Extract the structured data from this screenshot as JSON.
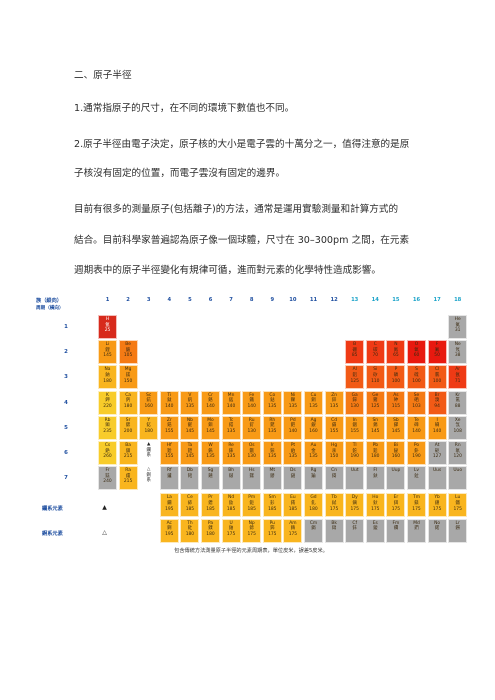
{
  "paragraphs": [
    "二、原子半徑",
    "1.通常指原子的尺寸，在不同的環境下數值也不同。",
    "2.原子半徑由電子決定，原子核的大小是電子雲的十萬分之一，值得注意的是原",
    "子核沒有固定的位置，而電子雲沒有固定的邊界。",
    "目前有很多的測量原子(包括離子)的方法，通常是運用實驗測量和計算方式的",
    "結合。目前科學家普遍認為原子像一個球體，尺寸在 30–300pm 之間，在元素",
    "週期表中的原子半徑變化有規律可循，進而對元素的化學特性造成影響。"
  ],
  "table": {
    "group_header": "族（縱向）",
    "period_header": "周期（橫向）",
    "groups": [
      "1",
      "2",
      "3",
      "4",
      "5",
      "6",
      "7",
      "8",
      "9",
      "10",
      "11",
      "12",
      "13",
      "14",
      "15",
      "16",
      "17",
      "18"
    ],
    "periods": [
      "1",
      "2",
      "3",
      "4",
      "5",
      "6",
      "7"
    ],
    "lanthanide_label": "鑭系元素",
    "actinide_label": "錒系元素",
    "lanthanide_marker": "▲",
    "actinide_marker": "△",
    "caption": "包含傳統方法測量原子半徑的元素周期表，單位皮米，誤差5皮米。",
    "colors": {
      "r0": "#e8190f",
      "r1": "#ef3a15",
      "r2": "#f25a16",
      "r3": "#f57a14",
      "r4": "#f89a16",
      "r5": "#f9b51e",
      "r6": "#f8cc2a",
      "gray": "#a8a8a8",
      "hd": "#d72a1c"
    },
    "cells": [
      {
        "sym": "H",
        "name": "氫",
        "val": "25",
        "r": 0,
        "c": 0,
        "col": "hd",
        "txt": "light"
      },
      {
        "sym": "He",
        "name": "氦",
        "val": "31",
        "r": 0,
        "c": 17,
        "col": "gray"
      },
      {
        "sym": "Li",
        "name": "鋰",
        "val": "145",
        "r": 1,
        "c": 0,
        "col": "r4"
      },
      {
        "sym": "Be",
        "name": "鈹",
        "val": "105",
        "r": 1,
        "c": 1,
        "col": "r3"
      },
      {
        "sym": "B",
        "name": "硼",
        "val": "85",
        "r": 1,
        "c": 12,
        "col": "r1"
      },
      {
        "sym": "C",
        "name": "碳",
        "val": "70",
        "r": 1,
        "c": 13,
        "col": "r1"
      },
      {
        "sym": "N",
        "name": "氮",
        "val": "65",
        "r": 1,
        "c": 14,
        "col": "r1"
      },
      {
        "sym": "O",
        "name": "氧",
        "val": "60",
        "r": 1,
        "c": 15,
        "col": "r0"
      },
      {
        "sym": "F",
        "name": "氟",
        "val": "50",
        "r": 1,
        "c": 16,
        "col": "r0"
      },
      {
        "sym": "Ne",
        "name": "氖",
        "val": "38",
        "r": 1,
        "c": 17,
        "col": "gray"
      },
      {
        "sym": "Na",
        "name": "鈉",
        "val": "180",
        "r": 2,
        "c": 0,
        "col": "r5"
      },
      {
        "sym": "Mg",
        "name": "鎂",
        "val": "150",
        "r": 2,
        "c": 1,
        "col": "r4"
      },
      {
        "sym": "Al",
        "name": "鋁",
        "val": "125",
        "r": 2,
        "c": 12,
        "col": "r2"
      },
      {
        "sym": "Si",
        "name": "矽",
        "val": "110",
        "r": 2,
        "c": 13,
        "col": "r2"
      },
      {
        "sym": "P",
        "name": "磷",
        "val": "100",
        "r": 2,
        "c": 14,
        "col": "r2"
      },
      {
        "sym": "S",
        "name": "硫",
        "val": "100",
        "r": 2,
        "c": 15,
        "col": "r2"
      },
      {
        "sym": "Cl",
        "name": "氯",
        "val": "100",
        "r": 2,
        "c": 16,
        "col": "r2"
      },
      {
        "sym": "Ar",
        "name": "氬",
        "val": "71",
        "r": 2,
        "c": 17,
        "col": "r1"
      },
      {
        "sym": "K",
        "name": "鉀",
        "val": "220",
        "r": 3,
        "c": 0,
        "col": "r6"
      },
      {
        "sym": "Ca",
        "name": "鈣",
        "val": "180",
        "r": 3,
        "c": 1,
        "col": "r5"
      },
      {
        "sym": "Sc",
        "name": "鈧",
        "val": "160",
        "r": 3,
        "c": 2,
        "col": "r4"
      },
      {
        "sym": "Ti",
        "name": "鈦",
        "val": "140",
        "r": 3,
        "c": 3,
        "col": "r4"
      },
      {
        "sym": "V",
        "name": "釩",
        "val": "135",
        "r": 3,
        "c": 4,
        "col": "r4"
      },
      {
        "sym": "Cr",
        "name": "鉻",
        "val": "140",
        "r": 3,
        "c": 5,
        "col": "r4"
      },
      {
        "sym": "Mn",
        "name": "錳",
        "val": "140",
        "r": 3,
        "c": 6,
        "col": "r4"
      },
      {
        "sym": "Fe",
        "name": "鐵",
        "val": "140",
        "r": 3,
        "c": 7,
        "col": "r4"
      },
      {
        "sym": "Co",
        "name": "鈷",
        "val": "135",
        "r": 3,
        "c": 8,
        "col": "r4"
      },
      {
        "sym": "Ni",
        "name": "鎳",
        "val": "135",
        "r": 3,
        "c": 9,
        "col": "r4"
      },
      {
        "sym": "Cu",
        "name": "銅",
        "val": "135",
        "r": 3,
        "c": 10,
        "col": "r4"
      },
      {
        "sym": "Zn",
        "name": "鋅",
        "val": "135",
        "r": 3,
        "c": 11,
        "col": "r4"
      },
      {
        "sym": "Ga",
        "name": "鎵",
        "val": "130",
        "r": 3,
        "c": 12,
        "col": "r3"
      },
      {
        "sym": "Ge",
        "name": "鍺",
        "val": "125",
        "r": 3,
        "c": 13,
        "col": "r3"
      },
      {
        "sym": "As",
        "name": "砷",
        "val": "115",
        "r": 3,
        "c": 14,
        "col": "r3"
      },
      {
        "sym": "Se",
        "name": "硒",
        "val": "103",
        "r": 3,
        "c": 15,
        "col": "r3"
      },
      {
        "sym": "Br",
        "name": "溴",
        "val": "94",
        "r": 3,
        "c": 16,
        "col": "r2"
      },
      {
        "sym": "Kr",
        "name": "氪",
        "val": "88",
        "r": 3,
        "c": 17,
        "col": "gray"
      },
      {
        "sym": "Rb",
        "name": "銣",
        "val": "235",
        "r": 4,
        "c": 0,
        "col": "r6"
      },
      {
        "sym": "Sr",
        "name": "鍶",
        "val": "200",
        "r": 4,
        "c": 1,
        "col": "r5"
      },
      {
        "sym": "Y",
        "name": "釔",
        "val": "180",
        "r": 4,
        "c": 2,
        "col": "r5"
      },
      {
        "sym": "Zr",
        "name": "鋯",
        "val": "155",
        "r": 4,
        "c": 3,
        "col": "r4"
      },
      {
        "sym": "Nb",
        "name": "鈮",
        "val": "145",
        "r": 4,
        "c": 4,
        "col": "r4"
      },
      {
        "sym": "Mo",
        "name": "鉬",
        "val": "145",
        "r": 4,
        "c": 5,
        "col": "r4"
      },
      {
        "sym": "Tc",
        "name": "鎝",
        "val": "135",
        "r": 4,
        "c": 6,
        "col": "r4"
      },
      {
        "sym": "Ru",
        "name": "釕",
        "val": "130",
        "r": 4,
        "c": 7,
        "col": "r4"
      },
      {
        "sym": "Rh",
        "name": "銠",
        "val": "135",
        "r": 4,
        "c": 8,
        "col": "r4"
      },
      {
        "sym": "Pd",
        "name": "鈀",
        "val": "140",
        "r": 4,
        "c": 9,
        "col": "r4"
      },
      {
        "sym": "Ag",
        "name": "銀",
        "val": "160",
        "r": 4,
        "c": 10,
        "col": "r4"
      },
      {
        "sym": "Cd",
        "name": "鎘",
        "val": "155",
        "r": 4,
        "c": 11,
        "col": "r4"
      },
      {
        "sym": "In",
        "name": "銦",
        "val": "155",
        "r": 4,
        "c": 12,
        "col": "r4"
      },
      {
        "sym": "Sn",
        "name": "錫",
        "val": "145",
        "r": 4,
        "c": 13,
        "col": "r4"
      },
      {
        "sym": "Sb",
        "name": "銻",
        "val": "145",
        "r": 4,
        "c": 14,
        "col": "r4"
      },
      {
        "sym": "Te",
        "name": "碲",
        "val": "140",
        "r": 4,
        "c": 15,
        "col": "r4"
      },
      {
        "sym": "I",
        "name": "碘",
        "val": "140",
        "r": 4,
        "c": 16,
        "col": "r4"
      },
      {
        "sym": "Xe",
        "name": "氙",
        "val": "108",
        "r": 4,
        "c": 17,
        "col": "gray"
      },
      {
        "sym": "Cs",
        "name": "銫",
        "val": "260",
        "r": 5,
        "c": 0,
        "col": "r6"
      },
      {
        "sym": "Ba",
        "name": "鋇",
        "val": "215",
        "r": 5,
        "c": 1,
        "col": "r5"
      },
      {
        "sym": "▲",
        "name": "鑭",
        "val": "系",
        "r": 5,
        "c": 2,
        "col": "none"
      },
      {
        "sym": "Hf",
        "name": "鉿",
        "val": "155",
        "r": 5,
        "c": 3,
        "col": "r4"
      },
      {
        "sym": "Ta",
        "name": "鉭",
        "val": "145",
        "r": 5,
        "c": 4,
        "col": "r4"
      },
      {
        "sym": "W",
        "name": "鎢",
        "val": "135",
        "r": 5,
        "c": 5,
        "col": "r4"
      },
      {
        "sym": "Re",
        "name": "錸",
        "val": "135",
        "r": 5,
        "c": 6,
        "col": "r4"
      },
      {
        "sym": "Os",
        "name": "鋨",
        "val": "130",
        "r": 5,
        "c": 7,
        "col": "r4"
      },
      {
        "sym": "Ir",
        "name": "銥",
        "val": "135",
        "r": 5,
        "c": 8,
        "col": "r4"
      },
      {
        "sym": "Pt",
        "name": "鉑",
        "val": "135",
        "r": 5,
        "c": 9,
        "col": "r4"
      },
      {
        "sym": "Au",
        "name": "金",
        "val": "135",
        "r": 5,
        "c": 10,
        "col": "r4"
      },
      {
        "sym": "Hg",
        "name": "汞",
        "val": "150",
        "r": 5,
        "c": 11,
        "col": "r4"
      },
      {
        "sym": "Tl",
        "name": "鉈",
        "val": "190",
        "r": 5,
        "c": 12,
        "col": "r4"
      },
      {
        "sym": "Pb",
        "name": "鉛",
        "val": "180",
        "r": 5,
        "c": 13,
        "col": "r4"
      },
      {
        "sym": "Bi",
        "name": "鉍",
        "val": "160",
        "r": 5,
        "c": 14,
        "col": "r4"
      },
      {
        "sym": "Po",
        "name": "釙",
        "val": "190",
        "r": 5,
        "c": 15,
        "col": "r4"
      },
      {
        "sym": "At",
        "name": "砈",
        "val": "127",
        "r": 5,
        "c": 16,
        "col": "gray"
      },
      {
        "sym": "Rn",
        "name": "氡",
        "val": "120",
        "r": 5,
        "c": 17,
        "col": "gray"
      },
      {
        "sym": "Fr",
        "name": "鍅",
        "val": "240",
        "r": 6,
        "c": 0,
        "col": "gray"
      },
      {
        "sym": "Ra",
        "name": "鐳",
        "val": "215",
        "r": 6,
        "c": 1,
        "col": "r5"
      },
      {
        "sym": "△",
        "name": "錒",
        "val": "系",
        "r": 6,
        "c": 2,
        "col": "none"
      },
      {
        "sym": "Rf",
        "name": "鑪",
        "val": "",
        "r": 6,
        "c": 3,
        "col": "gray"
      },
      {
        "sym": "Db",
        "name": "𨧀",
        "val": "",
        "r": 6,
        "c": 4,
        "col": "gray"
      },
      {
        "sym": "Sg",
        "name": "𨭎",
        "val": "",
        "r": 6,
        "c": 5,
        "col": "gray"
      },
      {
        "sym": "Bh",
        "name": "𨨏",
        "val": "",
        "r": 6,
        "c": 6,
        "col": "gray"
      },
      {
        "sym": "Hs",
        "name": "𨭆",
        "val": "",
        "r": 6,
        "c": 7,
        "col": "gray"
      },
      {
        "sym": "Mt",
        "name": "䥑",
        "val": "",
        "r": 6,
        "c": 8,
        "col": "gray"
      },
      {
        "sym": "Ds",
        "name": "鐽",
        "val": "",
        "r": 6,
        "c": 9,
        "col": "gray"
      },
      {
        "sym": "Rg",
        "name": "錀",
        "val": "",
        "r": 6,
        "c": 10,
        "col": "gray"
      },
      {
        "sym": "Cn",
        "name": "鎶",
        "val": "",
        "r": 6,
        "c": 11,
        "col": "gray"
      },
      {
        "sym": "Uut",
        "name": "",
        "val": "",
        "r": 6,
        "c": 12,
        "col": "gray"
      },
      {
        "sym": "Fl",
        "name": "鈇",
        "val": "",
        "r": 6,
        "c": 13,
        "col": "gray"
      },
      {
        "sym": "Uup",
        "name": "",
        "val": "",
        "r": 6,
        "c": 14,
        "col": "gray"
      },
      {
        "sym": "Lv",
        "name": "鉝",
        "val": "",
        "r": 6,
        "c": 15,
        "col": "gray"
      },
      {
        "sym": "Uus",
        "name": "",
        "val": "",
        "r": 6,
        "c": 16,
        "col": "gray"
      },
      {
        "sym": "Uuo",
        "name": "",
        "val": "",
        "r": 6,
        "c": 17,
        "col": "gray"
      },
      {
        "sym": "La",
        "name": "鑭",
        "val": "195",
        "r": 7,
        "c": 3,
        "col": "r5"
      },
      {
        "sym": "Ce",
        "name": "鈰",
        "val": "185",
        "r": 7,
        "c": 4,
        "col": "r5"
      },
      {
        "sym": "Pr",
        "name": "鐠",
        "val": "185",
        "r": 7,
        "c": 5,
        "col": "r5"
      },
      {
        "sym": "Nd",
        "name": "釹",
        "val": "185",
        "r": 7,
        "c": 6,
        "col": "r5"
      },
      {
        "sym": "Pm",
        "name": "鉕",
        "val": "185",
        "r": 7,
        "c": 7,
        "col": "r5"
      },
      {
        "sym": "Sm",
        "name": "釤",
        "val": "185",
        "r": 7,
        "c": 8,
        "col": "r5"
      },
      {
        "sym": "Eu",
        "name": "銪",
        "val": "185",
        "r": 7,
        "c": 9,
        "col": "r5"
      },
      {
        "sym": "Gd",
        "name": "釓",
        "val": "180",
        "r": 7,
        "c": 10,
        "col": "r5"
      },
      {
        "sym": "Tb",
        "name": "鋱",
        "val": "175",
        "r": 7,
        "c": 11,
        "col": "r5"
      },
      {
        "sym": "Dy",
        "name": "鏑",
        "val": "175",
        "r": 7,
        "c": 12,
        "col": "r5"
      },
      {
        "sym": "Ho",
        "name": "鈥",
        "val": "175",
        "r": 7,
        "c": 13,
        "col": "r5"
      },
      {
        "sym": "Er",
        "name": "鉺",
        "val": "175",
        "r": 7,
        "c": 14,
        "col": "r5"
      },
      {
        "sym": "Tm",
        "name": "銩",
        "val": "175",
        "r": 7,
        "c": 15,
        "col": "r5"
      },
      {
        "sym": "Yb",
        "name": "鐿",
        "val": "175",
        "r": 7,
        "c": 16,
        "col": "r5"
      },
      {
        "sym": "Lu",
        "name": "鎦",
        "val": "175",
        "r": 7,
        "c": 17,
        "col": "r5"
      },
      {
        "sym": "Ac",
        "name": "錒",
        "val": "195",
        "r": 8,
        "c": 3,
        "col": "r5"
      },
      {
        "sym": "Th",
        "name": "釷",
        "val": "180",
        "r": 8,
        "c": 4,
        "col": "r5"
      },
      {
        "sym": "Pa",
        "name": "鏷",
        "val": "180",
        "r": 8,
        "c": 5,
        "col": "r5"
      },
      {
        "sym": "U",
        "name": "鈾",
        "val": "175",
        "r": 8,
        "c": 6,
        "col": "r5"
      },
      {
        "sym": "Np",
        "name": "錼",
        "val": "175",
        "r": 8,
        "c": 7,
        "col": "r5"
      },
      {
        "sym": "Pu",
        "name": "鈽",
        "val": "175",
        "r": 8,
        "c": 8,
        "col": "r5"
      },
      {
        "sym": "Am",
        "name": "鋂",
        "val": "175",
        "r": 8,
        "c": 9,
        "col": "r5"
      },
      {
        "sym": "Cm",
        "name": "鋦",
        "val": "",
        "r": 8,
        "c": 10,
        "col": "gray"
      },
      {
        "sym": "Bk",
        "name": "鉳",
        "val": "",
        "r": 8,
        "c": 11,
        "col": "gray"
      },
      {
        "sym": "Cf",
        "name": "鉲",
        "val": "",
        "r": 8,
        "c": 12,
        "col": "gray"
      },
      {
        "sym": "Es",
        "name": "鑀",
        "val": "",
        "r": 8,
        "c": 13,
        "col": "gray"
      },
      {
        "sym": "Fm",
        "name": "鐨",
        "val": "",
        "r": 8,
        "c": 14,
        "col": "gray"
      },
      {
        "sym": "Md",
        "name": "鍆",
        "val": "",
        "r": 8,
        "c": 15,
        "col": "gray"
      },
      {
        "sym": "No",
        "name": "鍩",
        "val": "",
        "r": 8,
        "c": 16,
        "col": "gray"
      },
      {
        "sym": "Lr",
        "name": "鐒",
        "val": "",
        "r": 8,
        "c": 17,
        "col": "gray"
      }
    ]
  }
}
